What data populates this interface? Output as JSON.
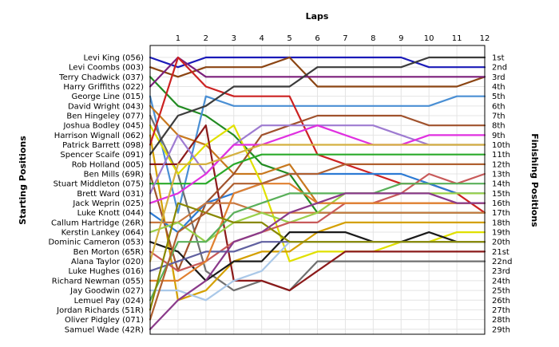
{
  "chart_data": {
    "type": "line",
    "title": "Laps",
    "xlabel": "Laps",
    "ylabel_left": "Starting Positions",
    "ylabel_right": "Finishing Positions",
    "x": [
      0,
      1,
      2,
      3,
      4,
      5,
      6,
      7,
      8,
      9,
      10,
      11,
      12
    ],
    "x_tick_labels": [
      "1",
      "2",
      "3",
      "4",
      "5",
      "6",
      "7",
      "8",
      "9",
      "10",
      "11",
      "12"
    ],
    "y_range": [
      1,
      29
    ],
    "grid": true,
    "starting_positions": [
      "Levi King (056)",
      "Levi Coombs (003)",
      "Terry Chadwick (037)",
      "Harry Griffiths (022)",
      "George Line (015)",
      "David Wright (043)",
      "Ben Hingeley (077)",
      "Joshua Bodley (045)",
      "Harrison Wignall (062)",
      "Patrick Barrett (098)",
      "Spencer Scaife (091)",
      "Rob Holland (005)",
      "Ben Mills (69R)",
      "Stuart Middleton (075)",
      "Brett Ward (031)",
      "Jack Weprin (025)",
      "Luke Knott (044)",
      "Callum Hartridge (26R)",
      "Kerstin Lankey (064)",
      "Dominic Cameron (053)",
      "Ben Morton (65R)",
      "Alana Taylor (020)",
      "Luke Hughes (016)",
      "Richard Newman (055)",
      "Jay Goodwin (027)",
      "Lemuel Pay (024)",
      "Jordan Richards (51R)",
      "Oliver Pidgley (071)",
      "Samuel Wade (42R)"
    ],
    "finishing_positions": [
      "1st",
      "2nd",
      "3rd",
      "4th",
      "5th",
      "6th",
      "7th",
      "8th",
      "9th",
      "10th",
      "11th",
      "12th",
      "13th",
      "14th",
      "15th",
      "16th",
      "17th",
      "18th",
      "19th",
      "20th",
      "21st",
      "22nd",
      "23rd",
      "24th",
      "25th",
      "26th",
      "27th",
      "28th",
      "29th"
    ],
    "series": [
      {
        "color": "#1a1ab8",
        "values": [
          1,
          2,
          1,
          1,
          1,
          1,
          1,
          1,
          1,
          1,
          2,
          2,
          2
        ]
      },
      {
        "color": "#8b4513",
        "values": [
          2,
          3,
          2,
          2,
          2,
          1,
          4,
          4,
          4,
          4,
          4,
          4,
          3
        ]
      },
      {
        "color": "#228b22",
        "values": [
          3,
          6,
          7,
          9,
          12,
          13,
          17,
          17,
          17,
          17,
          17,
          17,
          17
        ]
      },
      {
        "color": "#7b1f7b",
        "values": [
          4,
          1,
          3,
          3,
          3,
          3,
          3,
          3,
          3,
          3,
          3,
          3,
          3
        ]
      },
      {
        "color": "#4a8fd4",
        "values": [
          5,
          17,
          5,
          6,
          6,
          6,
          6,
          6,
          6,
          6,
          6,
          5,
          5
        ]
      },
      {
        "color": "#c8781e",
        "values": [
          6,
          9,
          10,
          13,
          13,
          12,
          16,
          16,
          16,
          16,
          16,
          16,
          16
        ]
      },
      {
        "color": "#707070",
        "values": [
          7,
          13,
          23,
          25,
          24,
          25,
          22,
          22,
          22,
          22,
          22,
          22,
          22
        ]
      },
      {
        "color": "#e0e000",
        "values": [
          8,
          13,
          10,
          8,
          14,
          22,
          21,
          21,
          21,
          20,
          20,
          19,
          19
        ]
      },
      {
        "color": "#d4a000",
        "values": [
          9,
          26,
          25,
          22,
          21,
          21,
          19,
          18,
          18,
          18,
          18,
          18,
          18
        ]
      },
      {
        "color": "#cc2222",
        "values": [
          10,
          1,
          4,
          5,
          5,
          5,
          11,
          12,
          13,
          14,
          14,
          15,
          17
        ]
      },
      {
        "color": "#3c3c3c",
        "values": [
          11,
          7,
          6,
          4,
          4,
          4,
          2,
          2,
          2,
          2,
          1,
          1,
          1
        ]
      },
      {
        "color": "#8b1a1a",
        "values": [
          12,
          12,
          8,
          24,
          24,
          25,
          23,
          21,
          21,
          21,
          21,
          21,
          21
        ]
      },
      {
        "color": "#a0522d",
        "values": [
          13,
          23,
          16,
          13,
          9,
          8,
          7,
          7,
          7,
          7,
          8,
          8,
          8
        ]
      },
      {
        "color": "#2aaa2a",
        "values": [
          14,
          14,
          14,
          12,
          11,
          11,
          11,
          11,
          11,
          11,
          11,
          11,
          11
        ]
      },
      {
        "color": "#9e7bd1",
        "values": [
          15,
          9,
          13,
          10,
          8,
          8,
          8,
          8,
          8,
          9,
          10,
          10,
          10
        ]
      },
      {
        "color": "#e030e0",
        "values": [
          16,
          15,
          13,
          10,
          10,
          9,
          8,
          9,
          10,
          10,
          9,
          9,
          9
        ]
      },
      {
        "color": "#2d7bd4",
        "values": [
          17,
          19,
          16,
          15,
          14,
          13,
          13,
          13,
          13,
          13,
          14,
          15,
          15
        ]
      },
      {
        "color": "#c87840",
        "values": [
          18,
          18,
          16,
          16,
          17,
          17,
          17,
          17,
          17,
          17,
          17,
          17,
          17
        ]
      },
      {
        "color": "#9ad04a",
        "values": [
          19,
          18,
          20,
          18,
          17,
          18,
          17,
          15,
          15,
          15,
          15,
          15,
          15
        ]
      },
      {
        "color": "#1a1a1a",
        "values": [
          20,
          21,
          24,
          22,
          22,
          19,
          19,
          19,
          20,
          20,
          19,
          20,
          20
        ]
      },
      {
        "color": "#c85a5a",
        "values": [
          21,
          23,
          22,
          20,
          19,
          18,
          18,
          16,
          16,
          15,
          13,
          14,
          13
        ]
      },
      {
        "color": "#d4b040",
        "values": [
          22,
          12,
          12,
          11,
          10,
          10,
          10,
          10,
          10,
          10,
          10,
          10,
          10
        ]
      },
      {
        "color": "#6060a0",
        "values": [
          23,
          22,
          21,
          21,
          20,
          20,
          20,
          20,
          20,
          20,
          20,
          20,
          20
        ]
      },
      {
        "color": "#e08030",
        "values": [
          24,
          24,
          22,
          15,
          14,
          14,
          16,
          16,
          16,
          16,
          16,
          16,
          16
        ]
      },
      {
        "color": "#aac8e8",
        "values": [
          25,
          25,
          26,
          24,
          23,
          20,
          20,
          20,
          20,
          20,
          20,
          20,
          20
        ]
      },
      {
        "color": "#5ab05a",
        "values": [
          26,
          20,
          20,
          17,
          16,
          15,
          15,
          15,
          15,
          14,
          14,
          14,
          14
        ]
      },
      {
        "color": "#888800",
        "values": [
          27,
          16,
          17,
          18,
          18,
          20,
          20,
          20,
          20,
          20,
          20,
          20,
          20
        ]
      },
      {
        "color": "#b06030",
        "values": [
          28,
          19,
          17,
          14,
          14,
          13,
          13,
          12,
          12,
          12,
          12,
          12,
          12
        ]
      },
      {
        "color": "#8a3a8a",
        "values": [
          29,
          26,
          24,
          20,
          19,
          17,
          16,
          15,
          15,
          15,
          15,
          16,
          16
        ]
      }
    ]
  }
}
